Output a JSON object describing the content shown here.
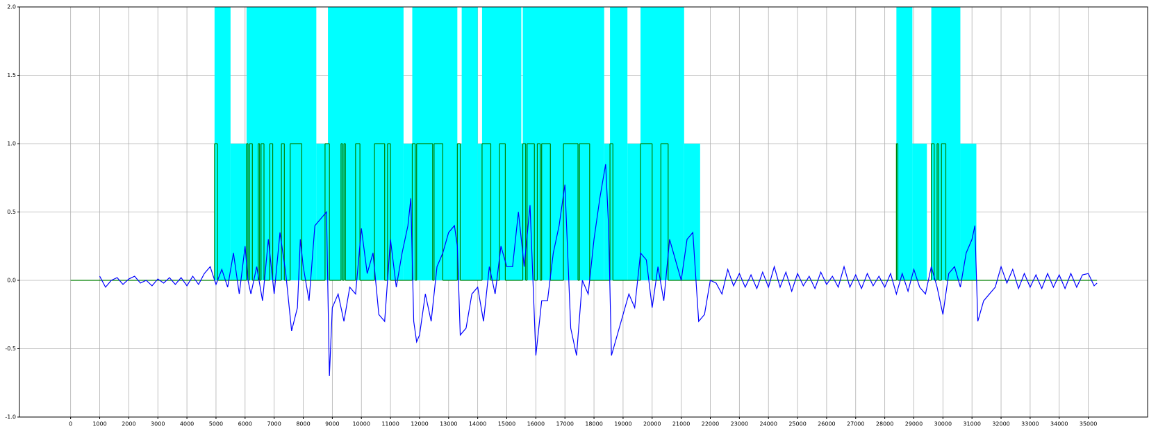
{
  "chart_data": {
    "type": "line",
    "xlim": [
      -1760,
      37040
    ],
    "ylim": [
      -1,
      2
    ],
    "xticks": [
      0,
      1000,
      2000,
      3000,
      4000,
      5000,
      6000,
      7000,
      8000,
      9000,
      10000,
      11000,
      12000,
      13000,
      14000,
      15000,
      16000,
      17000,
      18000,
      19000,
      20000,
      21000,
      22000,
      23000,
      24000,
      25000,
      26000,
      27000,
      28000,
      29000,
      30000,
      31000,
      32000,
      33000,
      34000,
      35000
    ],
    "yticks": [
      {
        "value": -1,
        "label": "-1.0"
      },
      -0.5,
      {
        "value": 0,
        "label": "0.0"
      },
      0.5,
      {
        "value": 1,
        "label": "1.0"
      },
      1.5,
      {
        "value": 2,
        "label": "2.0"
      }
    ],
    "grid": true,
    "series": [
      {
        "color": "#00ffff",
        "step": "post",
        "fill": true,
        "x": [
          0,
          4950,
          5500,
          6050,
          8450,
          8850,
          11450,
          11750,
          13300,
          13450,
          14000,
          14150,
          15500,
          15550,
          18350,
          18550,
          19150,
          19600,
          21100,
          21650,
          28400,
          28950,
          29450,
          29600,
          30600,
          31150
        ],
        "values": [
          0,
          2,
          1,
          2,
          1,
          2,
          1,
          2,
          1,
          2,
          1,
          2,
          1,
          2,
          1,
          2,
          1,
          2,
          1,
          0,
          2,
          1,
          0,
          2,
          1,
          0
        ]
      },
      {
        "color": "#008000",
        "step": "post",
        "fill": false,
        "x": [
          0,
          4950,
          5050,
          6050,
          6100,
          6150,
          6250,
          6450,
          6500,
          6550,
          6650,
          6850,
          6950,
          7250,
          7350,
          7550,
          7950,
          8750,
          8900,
          9300,
          9350,
          9400,
          9450,
          9800,
          9950,
          10450,
          10800,
          10900,
          11000,
          11750,
          11850,
          11900,
          12450,
          12500,
          12800,
          13300,
          13400,
          14150,
          14450,
          14750,
          14950,
          15550,
          15650,
          15700,
          15950,
          16050,
          16150,
          16200,
          16500,
          16950,
          17450,
          17500,
          17850,
          18550,
          18650,
          19600,
          20000,
          20300,
          20550,
          28400,
          28450,
          29600,
          29700,
          29800,
          29850,
          29950,
          30100,
          35300
        ],
        "values": [
          0,
          1,
          0,
          1,
          0,
          1,
          0,
          1,
          0,
          1,
          0,
          1,
          0,
          1,
          0,
          1,
          0,
          1,
          0,
          1,
          0,
          1,
          0,
          1,
          0,
          1,
          0,
          1,
          0,
          1,
          0,
          1,
          0,
          1,
          0,
          1,
          0,
          1,
          0,
          1,
          0,
          1,
          0,
          1,
          0,
          1,
          0,
          1,
          0,
          1,
          0,
          1,
          0,
          1,
          0,
          1,
          0,
          1,
          0,
          1,
          0,
          1,
          0,
          1,
          0,
          1,
          0,
          0
        ]
      },
      {
        "color": "#0000ff",
        "step": "none",
        "fill": false,
        "x": [
          1000,
          1200,
          1400,
          1600,
          1800,
          2000,
          2200,
          2400,
          2600,
          2800,
          3000,
          3200,
          3400,
          3600,
          3800,
          4000,
          4200,
          4400,
          4600,
          4800,
          5000,
          5200,
          5400,
          5600,
          5800,
          6000,
          6100,
          6200,
          6400,
          6600,
          6800,
          7000,
          7200,
          7400,
          7600,
          7800,
          7900,
          8000,
          8200,
          8400,
          8600,
          8800,
          8900,
          9000,
          9200,
          9400,
          9600,
          9800,
          10000,
          10200,
          10400,
          10600,
          10800,
          11000,
          11200,
          11400,
          11600,
          11700,
          11800,
          11900,
          12000,
          12200,
          12400,
          12600,
          12800,
          13000,
          13200,
          13300,
          13400,
          13600,
          13800,
          14000,
          14200,
          14400,
          14600,
          14800,
          15000,
          15200,
          15400,
          15600,
          15800,
          16000,
          16200,
          16400,
          16600,
          16800,
          17000,
          17200,
          17400,
          17600,
          17800,
          18000,
          18200,
          18400,
          18500,
          18600,
          18800,
          19000,
          19200,
          19400,
          19600,
          19800,
          20000,
          20200,
          20400,
          20600,
          20800,
          21000,
          21200,
          21400,
          21600,
          21800,
          22000,
          22200,
          22400,
          22600,
          22800,
          23000,
          23200,
          23400,
          23600,
          23800,
          24000,
          24200,
          24400,
          24600,
          24800,
          25000,
          25200,
          25400,
          25600,
          25800,
          26000,
          26200,
          26400,
          26600,
          26800,
          27000,
          27200,
          27400,
          27600,
          27800,
          28000,
          28200,
          28400,
          28600,
          28800,
          29000,
          29200,
          29400,
          29600,
          29800,
          30000,
          30200,
          30400,
          30600,
          30800,
          31000,
          31100,
          31200,
          31400,
          31600,
          31800,
          32000,
          32200,
          32400,
          32600,
          32800,
          33000,
          33200,
          33400,
          33600,
          33800,
          34000,
          34200,
          34400,
          34600,
          34800,
          35000,
          35200,
          35300
        ],
        "values": [
          0.03,
          -0.05,
          0.0,
          0.02,
          -0.03,
          0.01,
          0.03,
          -0.02,
          0.0,
          -0.04,
          0.01,
          -0.02,
          0.02,
          -0.03,
          0.02,
          -0.04,
          0.03,
          -0.03,
          0.05,
          0.1,
          -0.03,
          0.08,
          -0.05,
          0.2,
          -0.1,
          0.25,
          0.0,
          -0.1,
          0.1,
          -0.15,
          0.3,
          -0.1,
          0.35,
          0.05,
          -0.37,
          -0.2,
          0.3,
          0.1,
          -0.15,
          0.4,
          0.45,
          0.5,
          -0.7,
          -0.2,
          -0.1,
          -0.3,
          -0.05,
          -0.1,
          0.38,
          0.05,
          0.2,
          -0.25,
          -0.3,
          0.3,
          -0.05,
          0.2,
          0.4,
          0.6,
          -0.3,
          -0.45,
          -0.4,
          -0.1,
          -0.3,
          0.1,
          0.2,
          0.35,
          0.4,
          0.25,
          -0.4,
          -0.35,
          -0.1,
          -0.05,
          -0.3,
          0.1,
          -0.1,
          0.25,
          0.1,
          0.1,
          0.5,
          0.1,
          0.55,
          -0.55,
          -0.15,
          -0.15,
          0.2,
          0.4,
          0.7,
          -0.35,
          -0.55,
          0.0,
          -0.1,
          0.3,
          0.6,
          0.85,
          0.4,
          -0.55,
          -0.4,
          -0.25,
          -0.1,
          -0.2,
          0.2,
          0.15,
          -0.2,
          0.1,
          -0.15,
          0.3,
          0.15,
          0.0,
          0.3,
          0.35,
          -0.3,
          -0.25,
          0.0,
          -0.02,
          -0.1,
          0.08,
          -0.04,
          0.05,
          -0.05,
          0.04,
          -0.06,
          0.06,
          -0.05,
          0.1,
          -0.05,
          0.06,
          -0.08,
          0.05,
          -0.04,
          0.03,
          -0.06,
          0.06,
          -0.03,
          0.03,
          -0.05,
          0.1,
          -0.05,
          0.04,
          -0.06,
          0.05,
          -0.04,
          0.03,
          -0.05,
          0.05,
          -0.1,
          0.05,
          -0.08,
          0.08,
          -0.05,
          -0.1,
          0.1,
          -0.05,
          -0.25,
          0.05,
          0.1,
          -0.05,
          0.2,
          0.3,
          0.4,
          -0.3,
          -0.15,
          -0.1,
          -0.05,
          0.1,
          -0.02,
          0.08,
          -0.06,
          0.05,
          -0.05,
          0.04,
          -0.06,
          0.05,
          -0.05,
          0.04,
          -0.06,
          0.05,
          -0.05,
          0.04,
          0.05,
          -0.04,
          -0.02
        ]
      }
    ]
  }
}
